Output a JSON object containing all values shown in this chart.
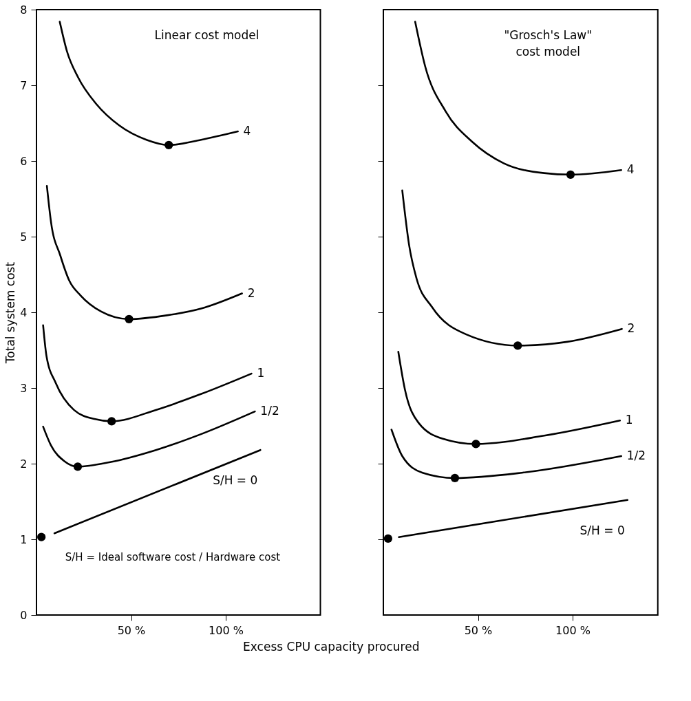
{
  "chart_data": [
    {
      "type": "line",
      "title": "Linear cost model",
      "ylabel": "Total system cost",
      "xlabel": "Excess CPU capacity procured",
      "xlim": [
        0,
        150
      ],
      "ylim": [
        0,
        8
      ],
      "xticks": [
        {
          "value": 50,
          "label": "50 %"
        },
        {
          "value": 100,
          "label": "100 %"
        }
      ],
      "yticks": [
        0,
        1,
        2,
        3,
        4,
        5,
        6,
        7,
        8
      ],
      "grid": false,
      "legend": false,
      "marker": "none",
      "line_style": "solid",
      "annotations": [
        "S/H = Ideal software cost / Hardware cost"
      ],
      "series": [
        {
          "name": "4",
          "color": "#000000",
          "x": [
            12.3,
            16.1,
            22.1,
            31.7,
            43.7,
            58.1,
            69.9,
            87,
            106.4
          ],
          "values": [
            7.84,
            7.45,
            7.1,
            6.75,
            6.47,
            6.28,
            6.21,
            6.28,
            6.39
          ]
        },
        {
          "name": "2",
          "color": "#000000",
          "x": [
            5.5,
            7.7,
            12.6,
            17.3,
            23.4,
            34.2,
            48.9,
            68.9,
            87,
            108.6
          ],
          "values": [
            5.67,
            5.19,
            4.75,
            4.42,
            4.22,
            4.01,
            3.91,
            3.96,
            4.05,
            4.25
          ]
        },
        {
          "name": "1",
          "color": "#000000",
          "x": [
            3.5,
            5.3,
            10.1,
            19.8,
            30.6,
            39.7,
            63.1,
            86.9,
            113.6
          ],
          "values": [
            3.83,
            3.42,
            3.07,
            2.71,
            2.59,
            2.56,
            2.71,
            2.92,
            3.19
          ]
        },
        {
          "name": "1/2",
          "color": "#000000",
          "x": [
            3.5,
            7.7,
            14.9,
            21.8,
            38.9,
            63.1,
            86.9,
            115.4
          ],
          "values": [
            2.49,
            2.24,
            2.03,
            1.96,
            2.02,
            2.18,
            2.39,
            2.69
          ]
        },
        {
          "name": "S/H = 0",
          "color": "#000000",
          "x": [
            9.5,
            118.3
          ],
          "values": [
            1.08,
            2.18
          ]
        },
        {
          "type": "scatter",
          "color": "#000000",
          "marker": "circle",
          "x": [
            69.9,
            48.9,
            39.7,
            21.8,
            2.6
          ],
          "values": [
            6.21,
            3.91,
            2.56,
            1.96,
            1.03
          ]
        }
      ]
    },
    {
      "type": "line",
      "title": "\"Grosch's Law\"\ncost model",
      "xlim": [
        0,
        145
      ],
      "ylim": [
        0,
        8
      ],
      "xticks": [
        {
          "value": 50,
          "label": "50 %"
        },
        {
          "value": 100,
          "label": "100 %"
        }
      ],
      "yticks": [
        1,
        2,
        3,
        4,
        5,
        6,
        7
      ],
      "tick_labels": "x",
      "grid": false,
      "legend": false,
      "marker": "none",
      "line_style": "solid",
      "series": [
        {
          "name": "4",
          "color": "#000000",
          "x": [
            16.8,
            22.1,
            32.8,
            47.1,
            63.6,
            85,
            98.9,
            125.7
          ],
          "values": [
            7.84,
            7.25,
            6.66,
            6.25,
            5.97,
            5.84,
            5.82,
            5.88
          ]
        },
        {
          "name": "2",
          "color": "#000000",
          "x": [
            10,
            13.6,
            17.5,
            25.7,
            43.6,
            71,
            97.1,
            126
          ],
          "values": [
            5.61,
            4.89,
            4.45,
            4.07,
            3.71,
            3.56,
            3.61,
            3.78
          ]
        },
        {
          "name": "1",
          "color": "#000000",
          "x": [
            7.9,
            11.4,
            18.6,
            31.4,
            48.9,
            85,
            125
          ],
          "values": [
            3.48,
            2.98,
            2.54,
            2.33,
            2.26,
            2.37,
            2.57
          ]
        },
        {
          "name": "1/2",
          "color": "#000000",
          "x": [
            4.3,
            10,
            20.7,
            37.8,
            73.2,
            125.7
          ],
          "values": [
            2.45,
            2.1,
            1.88,
            1.81,
            1.88,
            2.1
          ]
        },
        {
          "name": "S/H = 0",
          "color": "#000000",
          "x": [
            8.2,
            129
          ],
          "values": [
            1.03,
            1.52
          ]
        },
        {
          "type": "scatter",
          "color": "#000000",
          "marker": "circle",
          "x": [
            98.9,
            71,
            48.9,
            37.8,
            2.5
          ],
          "values": [
            5.82,
            3.56,
            2.26,
            1.81,
            1.01
          ]
        }
      ]
    }
  ]
}
